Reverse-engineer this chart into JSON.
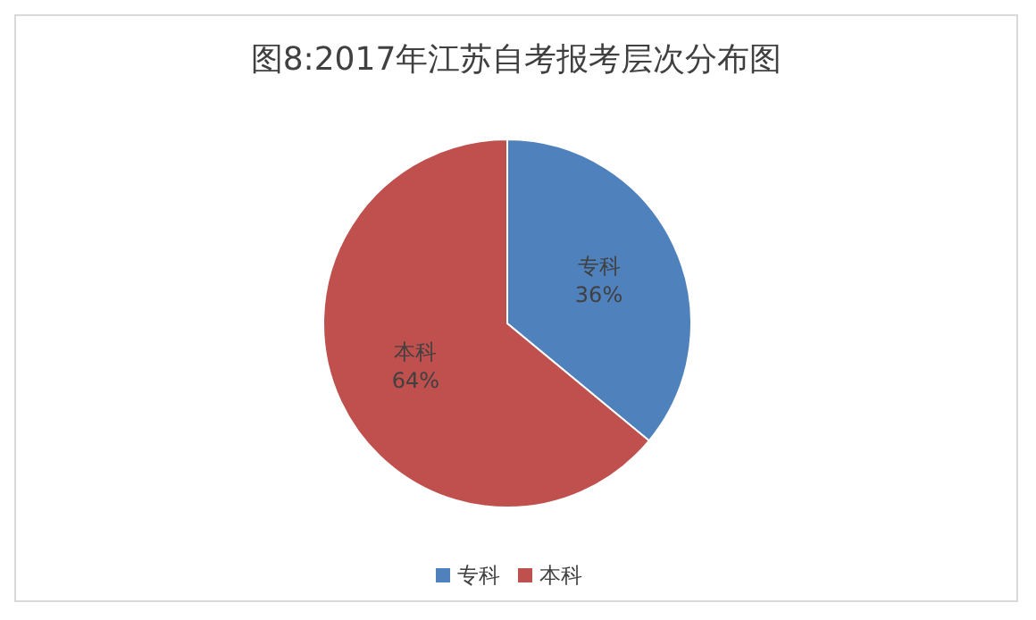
{
  "chart_data": {
    "type": "pie",
    "title": "图8:2017年江苏自考报考层次分布图",
    "categories": [
      "专科",
      "本科"
    ],
    "values": [
      36,
      64
    ],
    "colors": [
      "#4f81bd",
      "#c0504d"
    ],
    "value_labels": [
      "36%",
      "64%"
    ],
    "legend": "bottom"
  }
}
